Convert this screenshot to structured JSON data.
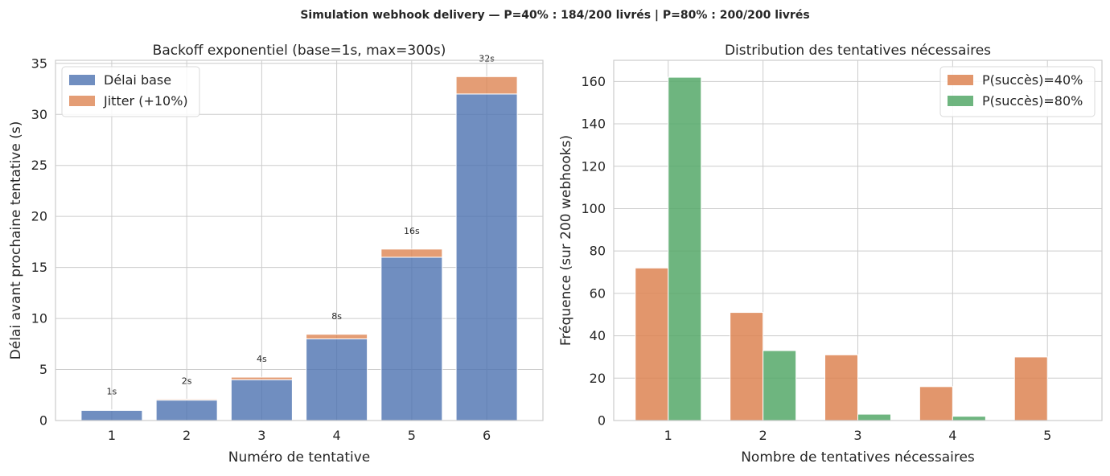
{
  "suptitle": "Simulation webhook delivery — P=40% : 184/200 livrés | P=80% : 200/200 livrés",
  "chart_data": [
    {
      "type": "bar",
      "stacked": true,
      "title": "Backoff exponentiel (base=1s, max=300s)",
      "xlabel": "Numéro de tentative",
      "ylabel": "Délai avant prochaine tentative (s)",
      "categories": [
        "1",
        "2",
        "3",
        "4",
        "5",
        "6"
      ],
      "ylim": [
        0,
        35.3
      ],
      "yticks": [
        0,
        5,
        10,
        15,
        20,
        25,
        30,
        35
      ],
      "grid": true,
      "legend_position": "top-left",
      "series": [
        {
          "name": "Délai base",
          "color": "#4c72b0",
          "values": [
            1,
            2,
            4,
            8,
            16,
            32
          ]
        },
        {
          "name": "Jitter (+10%)",
          "color": "#dd8452",
          "values": [
            0.05,
            0.1,
            0.25,
            0.45,
            0.8,
            1.7
          ]
        }
      ],
      "annotations": [
        "1s",
        "2s",
        "4s",
        "8s",
        "16s",
        "32s"
      ]
    },
    {
      "type": "bar",
      "title": "Distribution des tentatives nécessaires",
      "xlabel": "Nombre de tentatives nécessaires",
      "ylabel": "Fréquence (sur 200 webhooks)",
      "categories": [
        "1",
        "2",
        "3",
        "4",
        "5"
      ],
      "ylim": [
        0,
        170
      ],
      "yticks": [
        0,
        20,
        40,
        60,
        80,
        100,
        120,
        140,
        160
      ],
      "grid": true,
      "legend_position": "top-right",
      "series": [
        {
          "name": "P(succès)=40%",
          "color": "#dd8452",
          "values": [
            72,
            51,
            31,
            16,
            30
          ]
        },
        {
          "name": "P(succès)=80%",
          "color": "#55a868",
          "values": [
            162,
            33,
            3,
            2,
            0
          ]
        }
      ]
    }
  ]
}
